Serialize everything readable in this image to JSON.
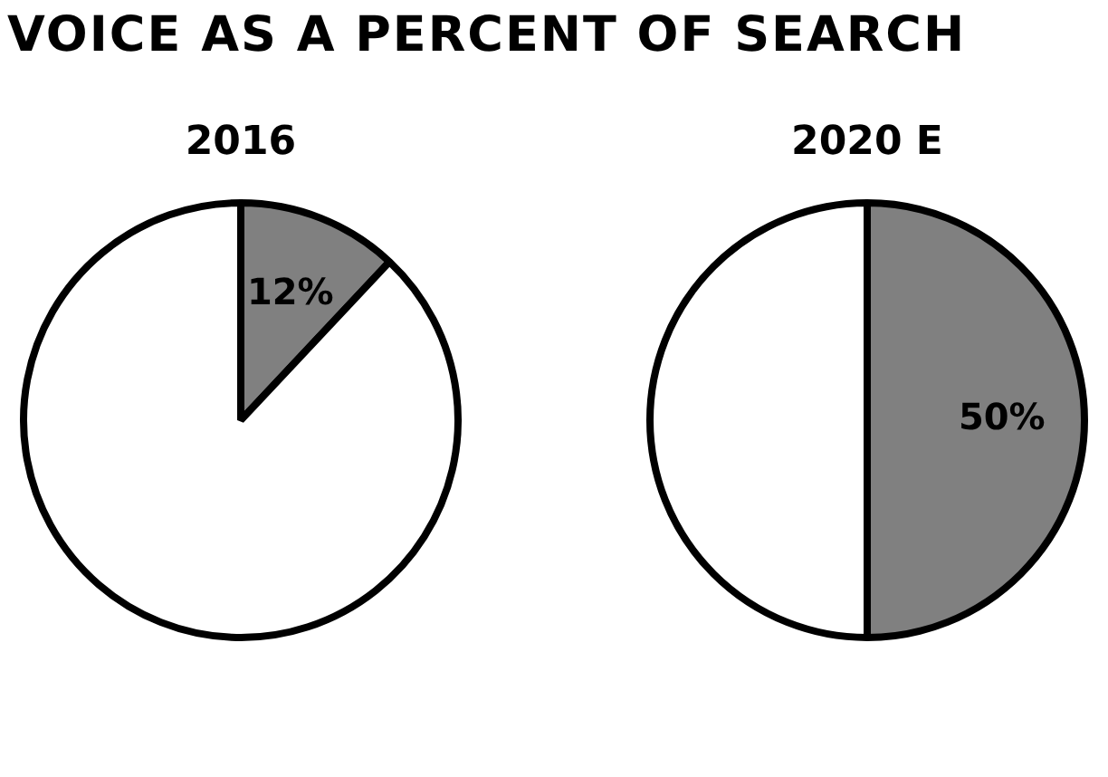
{
  "chart_data": [
    {
      "type": "pie",
      "title": "VOICE AS A PERCENT OF SEARCH",
      "subtitle": "2016",
      "categories": [
        null,
        null
      ],
      "values": [
        12,
        88
      ],
      "colors": [
        "#808080",
        "#ffffff"
      ],
      "value_labels": [
        "12%",
        null
      ]
    },
    {
      "type": "pie",
      "subtitle": "2020 E",
      "categories": [
        null,
        null
      ],
      "values": [
        50,
        50
      ],
      "colors": [
        "#808080",
        "#ffffff"
      ],
      "value_labels": [
        "50%",
        null
      ]
    }
  ]
}
